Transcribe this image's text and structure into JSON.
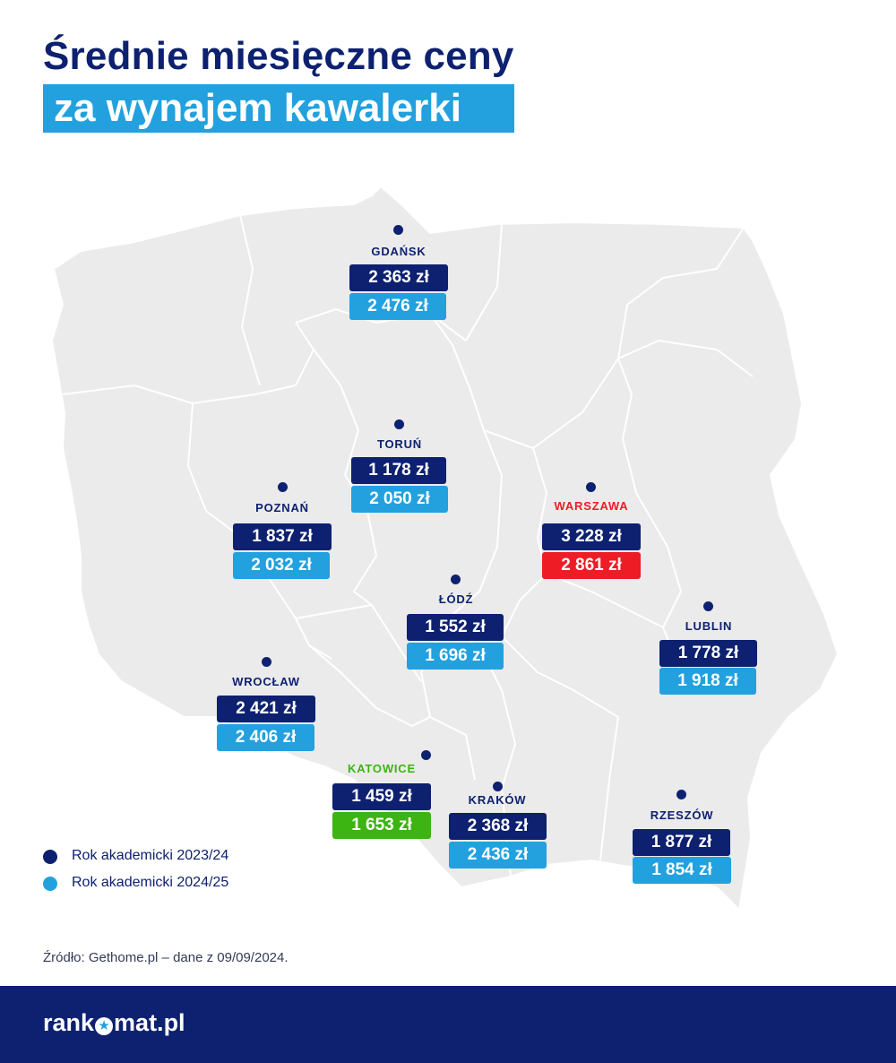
{
  "title": {
    "line1": "Średnie miesięczne ceny",
    "line2": "za wynajem kawalerki"
  },
  "cities": {
    "gdansk": {
      "name": "Gdańsk",
      "p2324": "2 363 zł",
      "p2425": "2 476 zł"
    },
    "torun": {
      "name": "Toruń",
      "p2324": "1 178 zł",
      "p2425": "2 050 zł"
    },
    "poznan": {
      "name": "Poznań",
      "p2324": "1 837 zł",
      "p2425": "2 032 zł"
    },
    "warszawa": {
      "name": "Warszawa",
      "p2324": "3 228 zł",
      "p2425": "2 861 zł"
    },
    "lodz": {
      "name": "Łódź",
      "p2324": "1 552 zł",
      "p2425": "1 696 zł"
    },
    "lublin": {
      "name": "Lublin",
      "p2324": "1 778 zł",
      "p2425": "1 918 zł"
    },
    "wroclaw": {
      "name": "Wrocław",
      "p2324": "2 421 zł",
      "p2425": "2 406 zł"
    },
    "katowice": {
      "name": "Katowice",
      "p2324": "1 459 zł",
      "p2425": "1 653 zł"
    },
    "krakow": {
      "name": "Kraków",
      "p2324": "2 368 zł",
      "p2425": "2 436 zł"
    },
    "rzeszow": {
      "name": "Rzeszów",
      "p2324": "1 877 zł",
      "p2425": "1 854 zł"
    }
  },
  "legend": [
    {
      "label": "Rok akademicki 2023/24",
      "color": "#0d2170"
    },
    {
      "label": "Rok akademicki 2024/25",
      "color": "#22a1de"
    }
  ],
  "source": "Źródło: Gethome.pl – dane z 09/09/2024.",
  "brand": {
    "part1": "rank",
    "part2": "mat.pl"
  },
  "colors": {
    "navy": "#0d2170",
    "light_blue": "#22a1de",
    "red_highlight": "#ee1c25",
    "green_highlight": "#3cb412",
    "map_fill": "#ebebeb"
  }
}
